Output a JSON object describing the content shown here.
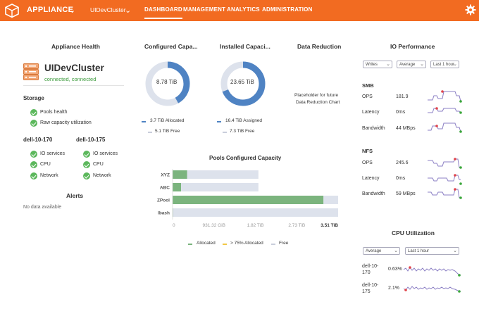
{
  "topbar": {
    "brand": "APPLIANCE",
    "cluster": "UIDevCluster",
    "nav": [
      "DASHBOARD",
      "MANAGEMENT",
      "ANALYTICS",
      "ADMINISTRATION"
    ],
    "active_nav": "DASHBOARD"
  },
  "health": {
    "title": "Appliance Health",
    "cluster_name": "UIDevCluster",
    "cluster_status": "connected, connected",
    "storage_title": "Storage",
    "storage_items": [
      "Pools health",
      "Raw capacity utilization"
    ],
    "nodes": [
      {
        "name": "dell-10-170",
        "items": [
          "IO services",
          "CPU",
          "Network"
        ]
      },
      {
        "name": "dell-10-175",
        "items": [
          "IO services",
          "CPU",
          "Network"
        ]
      }
    ]
  },
  "alerts": {
    "title": "Alerts",
    "empty": "No data available"
  },
  "configured": {
    "title": "Configured Capa...",
    "center": "8.78 TiB",
    "legend": [
      "3.7 TiB Allocated",
      "5.1 TiB Free"
    ],
    "allocated_fraction": 0.42
  },
  "installed": {
    "title": "Installed Capaci...",
    "center": "23.65 TiB",
    "legend": [
      "16.4 TiB Assigned",
      "7.3 TiB Free"
    ],
    "assigned_fraction": 0.69
  },
  "reduction": {
    "title": "Data Reduction",
    "placeholder_line1": "Placeholder for future",
    "placeholder_line2": "Data Reduction Chart"
  },
  "pools": {
    "title": "Pools Configured Capacity",
    "chart_data": {
      "type": "bar",
      "orientation": "horizontal",
      "categories": [
        "XYZ",
        "ABC",
        "ZPool",
        "lbash"
      ],
      "series": [
        {
          "name": "Allocated",
          "values": [
            0.31,
            0.18,
            3.2,
            0.01
          ]
        },
        {
          "name": "> 75% Allocated",
          "values": [
            0,
            0,
            0,
            0
          ]
        },
        {
          "name": "Free",
          "values": [
            1.51,
            1.64,
            0.31,
            3.5
          ]
        }
      ],
      "bar_colors": [
        "#7bb47e",
        "#f6e08a",
        "#dde2ec"
      ],
      "xticks": [
        "0",
        "931.32 GiB",
        "1.82 TiB",
        "2.73 TiB",
        "3.51 TiB"
      ],
      "xlim": [
        0,
        3.51
      ],
      "legend": [
        "Allocated",
        "> 75% Allocated",
        "Free"
      ]
    },
    "legend_colors": [
      "#7bb47e",
      "#f2c744",
      "#c9cedb"
    ]
  },
  "io": {
    "title": "IO Performance",
    "selects": [
      "Writes",
      "Average",
      "Last 1 hour"
    ],
    "smb_title": "SMB",
    "smb": [
      {
        "label": "OPS",
        "value": "181.9"
      },
      {
        "label": "Latency",
        "value": "0ms"
      },
      {
        "label": "Bandwidth",
        "value": "44 MBps"
      }
    ],
    "nfs_title": "NFS",
    "nfs": [
      {
        "label": "OPS",
        "value": "245.6"
      },
      {
        "label": "Latency",
        "value": "0ms"
      },
      {
        "label": "Bandwidth",
        "value": "59 MBps"
      }
    ]
  },
  "cpu": {
    "title": "CPU Utilization",
    "selects": [
      "Average",
      "Last 1 hour"
    ],
    "rows": [
      {
        "name1": "dell-10-",
        "name2": "170",
        "value": "0.63%"
      },
      {
        "name1": "dell-10-",
        "name2": "175",
        "value": "2.1%"
      }
    ]
  }
}
